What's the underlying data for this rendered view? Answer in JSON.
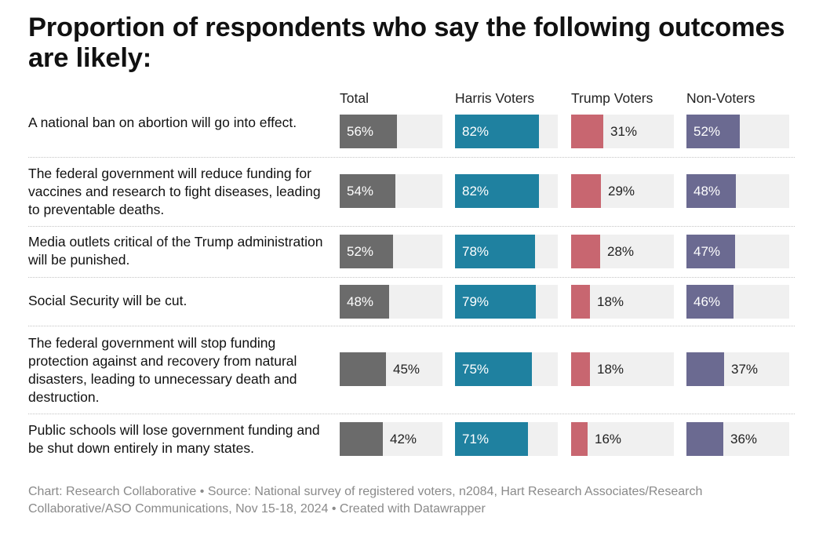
{
  "chart_data": {
    "type": "bar",
    "title": "Proportion of respondents who say the following outcomes are likely:",
    "columns": [
      "Total",
      "Harris Voters",
      "Trump Voters",
      "Non-Voters"
    ],
    "column_colors": [
      "#6b6b6b",
      "#1f81a0",
      "#c86670",
      "#6b6a91"
    ],
    "value_suffix": "%",
    "xlim": [
      0,
      100
    ],
    "rows": [
      {
        "label": "A national ban on abortion will go into effect.",
        "values": [
          56,
          82,
          31,
          52
        ]
      },
      {
        "label": "The federal government will reduce funding for vaccines and research to fight diseases, leading to preventable deaths.",
        "values": [
          54,
          82,
          29,
          48
        ]
      },
      {
        "label": "Media outlets critical of the Trump administration will be punished.",
        "values": [
          52,
          78,
          28,
          47
        ]
      },
      {
        "label": "Social Security will be cut.",
        "values": [
          48,
          79,
          18,
          46
        ]
      },
      {
        "label": "The federal government will stop funding protection against and recovery from natural disasters, leading to unnecessary death and destruction.",
        "values": [
          45,
          75,
          18,
          37
        ]
      },
      {
        "label": "Public schools will lose government funding and be shut down entirely in many states.",
        "values": [
          42,
          71,
          16,
          36
        ]
      }
    ],
    "footer": "Chart: Research Collaborative • Source: National survey of registered voters, n2084, Hart Research Associates/Research Collaborative/ASO Communications, Nov 15-18, 2024 • Created with Datawrapper"
  }
}
